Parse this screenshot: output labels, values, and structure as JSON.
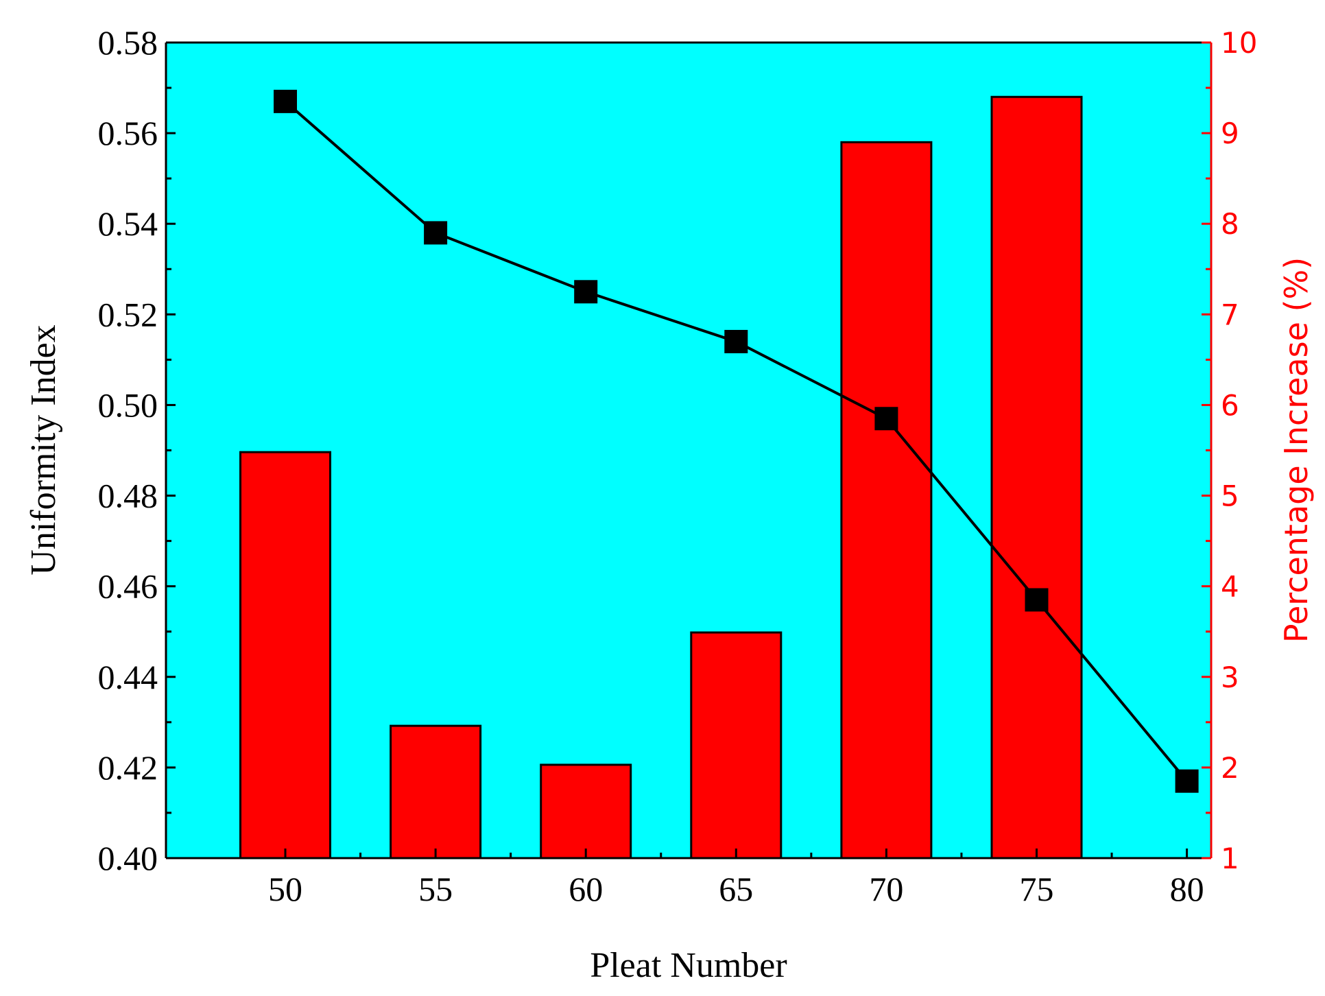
{
  "chart_data": {
    "type": "bar",
    "x_categories": [
      "50",
      "55",
      "60",
      "65",
      "70",
      "75",
      "80"
    ],
    "xlabel": "Pleat Number",
    "y_left": {
      "label": "Uniformity Index",
      "lim": [
        0.4,
        0.58
      ],
      "ticks": [
        "0.40",
        "0.42",
        "0.44",
        "0.46",
        "0.48",
        "0.50",
        "0.52",
        "0.54",
        "0.56",
        "0.58"
      ]
    },
    "y_right": {
      "label": "Percentage  Increase  (%)",
      "lim": [
        1,
        10
      ],
      "ticks": [
        "1",
        "2",
        "3",
        "4",
        "5",
        "6",
        "7",
        "8",
        "9",
        "10"
      ]
    },
    "series": [
      {
        "type": "bar",
        "axis": "right",
        "x": [
          50,
          55,
          60,
          65,
          70,
          75
        ],
        "values": [
          5.48,
          2.46,
          2.03,
          3.49,
          8.9,
          9.4
        ]
      },
      {
        "type": "line",
        "axis": "left",
        "marker": "square",
        "x": [
          50,
          55,
          60,
          65,
          70,
          75,
          80
        ],
        "values": [
          0.567,
          0.538,
          0.525,
          0.514,
          0.497,
          0.457,
          0.417
        ]
      }
    ],
    "colors": {
      "plot_background": "#00ffff",
      "bars": "#ff0000",
      "line": "#000000",
      "right_axis": "#ff0000"
    },
    "grid": false
  }
}
